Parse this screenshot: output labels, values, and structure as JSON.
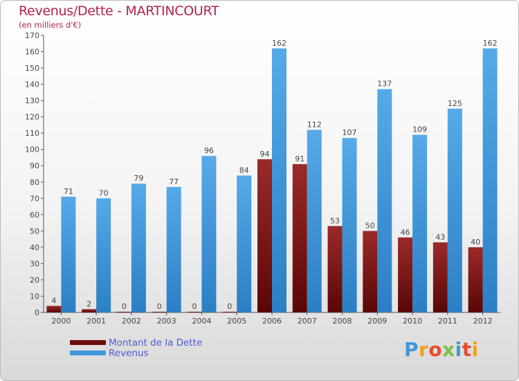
{
  "header": {
    "title": "Revenus/Dette - MARTINCOURT",
    "subtitle": "(en milliers d'€)"
  },
  "legend": {
    "items": [
      {
        "label": "Montant de la Dette",
        "color": "#6a0d0d"
      },
      {
        "label": "Revenus",
        "color": "#3f97dc"
      }
    ]
  },
  "logo": {
    "text": "Proxiti"
  },
  "colors": {
    "debt": "#7a1414",
    "revenue": "#3f97dc",
    "label": "#444444",
    "title": "#b3224d",
    "legend_text": "#4a5bd6"
  },
  "chart_data": {
    "type": "bar",
    "title": "Revenus/Dette - MARTINCOURT",
    "subtitle": "(en milliers d'€)",
    "categories": [
      "2000",
      "2001",
      "2002",
      "2003",
      "2004",
      "2005",
      "2006",
      "2007",
      "2008",
      "2009",
      "2010",
      "2011",
      "2012"
    ],
    "series": [
      {
        "name": "Montant de la Dette",
        "values": [
          4,
          2,
          0,
          0,
          0,
          0,
          94,
          91,
          53,
          50,
          46,
          43,
          40
        ]
      },
      {
        "name": "Revenus",
        "values": [
          71,
          70,
          79,
          77,
          96,
          84,
          162,
          112,
          107,
          137,
          109,
          125,
          162
        ]
      }
    ],
    "ylim": [
      0,
      170
    ],
    "ytick_step": 10,
    "grid": false,
    "legend_position": "bottom-left",
    "data_labels": true
  }
}
